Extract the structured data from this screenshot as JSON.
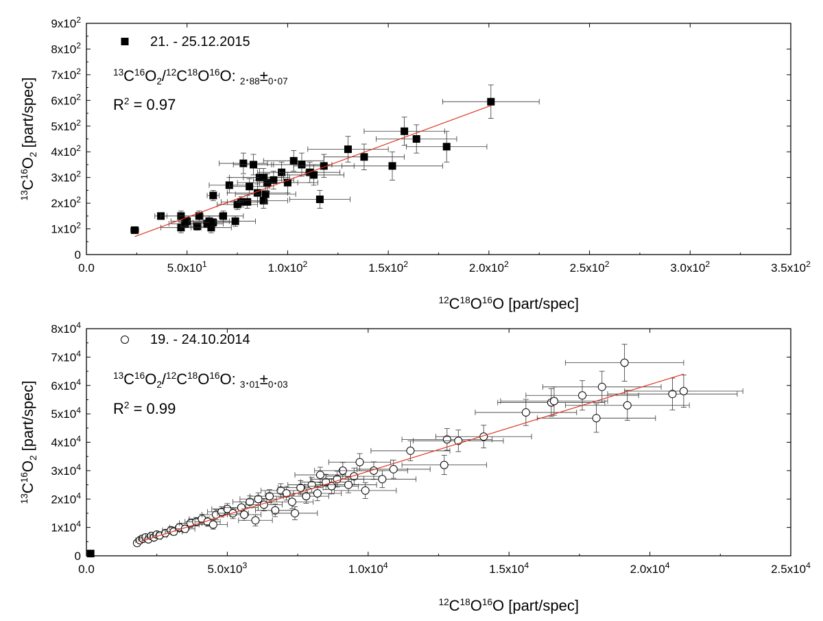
{
  "chart_data": [
    {
      "type": "scatter",
      "xlim": [
        0,
        350
      ],
      "ylim": [
        0,
        900
      ],
      "x_ticks": [
        {
          "value": 0,
          "label": "0.0"
        },
        {
          "value": 50,
          "label": "5.0x10",
          "exp": "1"
        },
        {
          "value": 100,
          "label": "1.0x10",
          "exp": "2"
        },
        {
          "value": 150,
          "label": "1.5x10",
          "exp": "2"
        },
        {
          "value": 200,
          "label": "2.0x10",
          "exp": "2"
        },
        {
          "value": 250,
          "label": "2.5x10",
          "exp": "2"
        },
        {
          "value": 300,
          "label": "3.0x10",
          "exp": "2"
        },
        {
          "value": 350,
          "label": "3.5x10",
          "exp": "2"
        }
      ],
      "y_ticks": [
        {
          "value": 0,
          "label": "0"
        },
        {
          "value": 100,
          "label": "1x10",
          "exp": "2"
        },
        {
          "value": 200,
          "label": "2x10",
          "exp": "2"
        },
        {
          "value": 300,
          "label": "3x10",
          "exp": "2"
        },
        {
          "value": 400,
          "label": "4x10",
          "exp": "2"
        },
        {
          "value": 500,
          "label": "5x10",
          "exp": "2"
        },
        {
          "value": 600,
          "label": "6x10",
          "exp": "2"
        },
        {
          "value": 700,
          "label": "7x10",
          "exp": "2"
        },
        {
          "value": 800,
          "label": "8x10",
          "exp": "2"
        },
        {
          "value": 900,
          "label": "9x10",
          "exp": "2"
        }
      ],
      "xlabel": "12C18O16O [part/spec]",
      "ylabel": "13C16O2 [part/spec]",
      "legend": "21. - 25.12.2015",
      "annotation_ratio": "13C16O2/12C18O16O: 2.88±0.07",
      "annotation_r2": "R2 = 0.97",
      "marker": "filled-square",
      "fit_line": {
        "x": [
          24,
          201
        ],
        "y": [
          70,
          580
        ],
        "color": "#e03020"
      },
      "points": [
        [
          24,
          95,
          2,
          2
        ],
        [
          37,
          150,
          3,
          3
        ],
        [
          47,
          150,
          10,
          20
        ],
        [
          47,
          105,
          10,
          20
        ],
        [
          49,
          120,
          8,
          15
        ],
        [
          50,
          130,
          8,
          15
        ],
        [
          55,
          110,
          8,
          15
        ],
        [
          56,
          150,
          10,
          20
        ],
        [
          60,
          120,
          8,
          15
        ],
        [
          61,
          130,
          10,
          20
        ],
        [
          62,
          105,
          10,
          20
        ],
        [
          63,
          125,
          10,
          15
        ],
        [
          63,
          230,
          3,
          20
        ],
        [
          68,
          150,
          10,
          20
        ],
        [
          71,
          270,
          10,
          30
        ],
        [
          74,
          130,
          10,
          20
        ],
        [
          75,
          195,
          10,
          20
        ],
        [
          77,
          205,
          10,
          20
        ],
        [
          78,
          355,
          12,
          40
        ],
        [
          80,
          205,
          10,
          25
        ],
        [
          81,
          265,
          10,
          30
        ],
        [
          83,
          350,
          10,
          40
        ],
        [
          85,
          240,
          15,
          35
        ],
        [
          86,
          300,
          15,
          35
        ],
        [
          88,
          210,
          12,
          30
        ],
        [
          88,
          300,
          10,
          35
        ],
        [
          89,
          235,
          15,
          35
        ],
        [
          90,
          280,
          15,
          35
        ],
        [
          93,
          290,
          10,
          35
        ],
        [
          97,
          320,
          12,
          40
        ],
        [
          100,
          280,
          15,
          40
        ],
        [
          103,
          365,
          15,
          40
        ],
        [
          107,
          350,
          15,
          45
        ],
        [
          111,
          320,
          15,
          40
        ],
        [
          113,
          310,
          15,
          40
        ],
        [
          116,
          215,
          15,
          35
        ],
        [
          118,
          345,
          15,
          45
        ],
        [
          130,
          410,
          20,
          50
        ],
        [
          138,
          380,
          20,
          50
        ],
        [
          152,
          345,
          25,
          55
        ],
        [
          158,
          480,
          20,
          55
        ],
        [
          164,
          450,
          20,
          55
        ],
        [
          179,
          420,
          20,
          60
        ],
        [
          201,
          595,
          24,
          65
        ]
      ]
    },
    {
      "type": "scatter",
      "xlim": [
        0,
        25000
      ],
      "ylim": [
        0,
        80000
      ],
      "x_ticks": [
        {
          "value": 0,
          "label": "0.0"
        },
        {
          "value": 5000,
          "label": "5.0x10",
          "exp": "3"
        },
        {
          "value": 10000,
          "label": "1.0x10",
          "exp": "4"
        },
        {
          "value": 15000,
          "label": "1.5x10",
          "exp": "4"
        },
        {
          "value": 20000,
          "label": "2.0x10",
          "exp": "4"
        },
        {
          "value": 25000,
          "label": "2.5x10",
          "exp": "4"
        }
      ],
      "y_ticks": [
        {
          "value": 0,
          "label": "0"
        },
        {
          "value": 10000,
          "label": "1x10",
          "exp": "4"
        },
        {
          "value": 20000,
          "label": "2x10",
          "exp": "4"
        },
        {
          "value": 30000,
          "label": "3x10",
          "exp": "4"
        },
        {
          "value": 40000,
          "label": "4x10",
          "exp": "4"
        },
        {
          "value": 50000,
          "label": "5x10",
          "exp": "4"
        },
        {
          "value": 60000,
          "label": "6x10",
          "exp": "4"
        },
        {
          "value": 70000,
          "label": "7x10",
          "exp": "4"
        },
        {
          "value": 80000,
          "label": "8x10",
          "exp": "4"
        }
      ],
      "xlabel": "12C18O16O [part/spec]",
      "ylabel": "13C16O2 [part/spec]",
      "legend": "19. - 24.10.2014",
      "annotation_ratio": "13C16O2/12C18O16O: 3.01±0.03",
      "annotation_r2": "R2 = 0.99",
      "marker": "open-circle",
      "fit_line": {
        "x": [
          1900,
          21200
        ],
        "y": [
          5000,
          64000
        ],
        "color": "#e03020"
      },
      "extra_square": [
        150,
        800
      ],
      "points": [
        [
          1800,
          4500,
          100,
          800
        ],
        [
          1900,
          5500,
          150,
          900
        ],
        [
          2000,
          6000,
          150,
          900
        ],
        [
          2100,
          6500,
          200,
          1000
        ],
        [
          2200,
          5800,
          200,
          1000
        ],
        [
          2300,
          7000,
          200,
          1000
        ],
        [
          2400,
          6500,
          250,
          1000
        ],
        [
          2500,
          7500,
          250,
          1100
        ],
        [
          2600,
          7200,
          250,
          1100
        ],
        [
          2800,
          8000,
          300,
          1200
        ],
        [
          3000,
          9000,
          300,
          1200
        ],
        [
          3100,
          8500,
          300,
          1200
        ],
        [
          3300,
          10000,
          350,
          1300
        ],
        [
          3500,
          9500,
          350,
          1300
        ],
        [
          3700,
          11500,
          400,
          1500
        ],
        [
          3900,
          12000,
          400,
          1500
        ],
        [
          4100,
          13000,
          450,
          1600
        ],
        [
          4300,
          12000,
          450,
          1600
        ],
        [
          4500,
          11000,
          500,
          1600
        ],
        [
          4600,
          14500,
          500,
          1800
        ],
        [
          4800,
          15500,
          500,
          1800
        ],
        [
          5000,
          16500,
          550,
          1900
        ],
        [
          5200,
          15000,
          550,
          1900
        ],
        [
          5500,
          17000,
          600,
          2000
        ],
        [
          5600,
          14500,
          600,
          2000
        ],
        [
          5800,
          19000,
          600,
          2100
        ],
        [
          6000,
          12500,
          600,
          2000
        ],
        [
          6100,
          20000,
          650,
          2200
        ],
        [
          6300,
          18000,
          650,
          2200
        ],
        [
          6500,
          21000,
          700,
          2300
        ],
        [
          6700,
          16000,
          700,
          2200
        ],
        [
          6900,
          23000,
          700,
          2400
        ],
        [
          7100,
          22000,
          750,
          2400
        ],
        [
          7300,
          19000,
          750,
          2400
        ],
        [
          7400,
          15000,
          800,
          2300
        ],
        [
          7600,
          24000,
          800,
          2500
        ],
        [
          7800,
          21000,
          800,
          2500
        ],
        [
          8000,
          25000,
          850,
          2600
        ],
        [
          8200,
          22000,
          850,
          2600
        ],
        [
          8300,
          28500,
          900,
          2700
        ],
        [
          8500,
          26000,
          900,
          2700
        ],
        [
          8700,
          24500,
          950,
          2700
        ],
        [
          8900,
          27000,
          950,
          2800
        ],
        [
          9100,
          30000,
          1000,
          2900
        ],
        [
          9300,
          25000,
          1000,
          2800
        ],
        [
          9500,
          28000,
          1000,
          2900
        ],
        [
          9700,
          33000,
          1100,
          3000
        ],
        [
          9900,
          23000,
          1100,
          2800
        ],
        [
          10200,
          30000,
          1200,
          3100
        ],
        [
          10500,
          27000,
          1200,
          3000
        ],
        [
          10900,
          30500,
          1300,
          3200
        ],
        [
          11500,
          37000,
          1400,
          3500
        ],
        [
          12700,
          32000,
          1500,
          3400
        ],
        [
          12800,
          41000,
          1600,
          3800
        ],
        [
          13200,
          40500,
          1600,
          3800
        ],
        [
          14100,
          42000,
          1700,
          4000
        ],
        [
          15600,
          50500,
          1800,
          4600
        ],
        [
          16500,
          54000,
          1900,
          4900
        ],
        [
          16600,
          54500,
          1900,
          5000
        ],
        [
          17600,
          56500,
          2000,
          5200
        ],
        [
          18100,
          48500,
          2100,
          5000
        ],
        [
          18300,
          59500,
          2100,
          5500
        ],
        [
          19100,
          68000,
          2100,
          6500
        ],
        [
          19200,
          53000,
          2200,
          5300
        ],
        [
          20800,
          57000,
          2300,
          5600
        ],
        [
          21200,
          58000,
          2100,
          5700
        ]
      ]
    }
  ]
}
